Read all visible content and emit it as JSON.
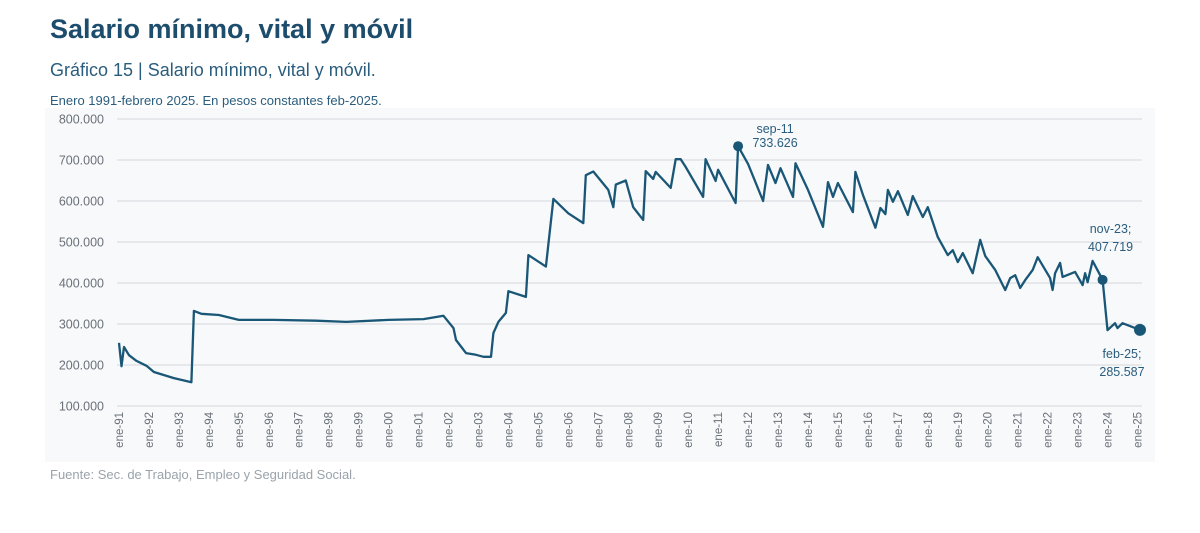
{
  "header": {
    "title": "Salario mínimo, vital y móvil",
    "subtitle": "Gráfico 15 | Salario mínimo, vital y móvil.",
    "note": "Enero 1991-febrero 2025. En pesos constantes feb-2025."
  },
  "footer": {
    "source": "Fuente: Sec. de Trabajo, Empleo y Seguridad Social."
  },
  "chart_data": {
    "type": "line",
    "title": "Salario mínimo, vital y móvil",
    "ylim": [
      100000,
      800000
    ],
    "xlim": [
      "1991-01",
      "2025-02"
    ],
    "grid": true,
    "line_color": "#1a5777",
    "background_color": "#f7f9fb",
    "y_ticks": [
      {
        "value": 100000,
        "label": "100.000"
      },
      {
        "value": 200000,
        "label": "200.000"
      },
      {
        "value": 300000,
        "label": "300.000"
      },
      {
        "value": 400000,
        "label": "400.000"
      },
      {
        "value": 500000,
        "label": "500.000"
      },
      {
        "value": 600000,
        "label": "600.000"
      },
      {
        "value": 700000,
        "label": "700.000"
      },
      {
        "value": 800000,
        "label": "800.000"
      }
    ],
    "x_ticks": [
      "ene-91",
      "ene-92",
      "ene-93",
      "ene-94",
      "ene-95",
      "ene-96",
      "ene-97",
      "ene-98",
      "ene-99",
      "ene-00",
      "ene-01",
      "ene-02",
      "ene-03",
      "ene-04",
      "ene-05",
      "ene-06",
      "ene-07",
      "ene-08",
      "ene-09",
      "ene-10",
      "ene-11",
      "ene-12",
      "ene-13",
      "ene-14",
      "ene-15",
      "ene-16",
      "ene-17",
      "ene-18",
      "ene-19",
      "ene-20",
      "ene-21",
      "ene-22",
      "ene-23",
      "ene-24",
      "ene-25"
    ],
    "x": [
      "1991-01",
      "1991-02",
      "1991-03",
      "1991-05",
      "1991-08",
      "1991-12",
      "1992-03",
      "1992-11",
      "1993-06",
      "1993-07",
      "1993-10",
      "1994-05",
      "1995-01",
      "1996-03",
      "1997-08",
      "1998-08",
      "2000-01",
      "2001-03",
      "2001-11",
      "2002-03",
      "2002-04",
      "2002-08",
      "2002-12",
      "2003-03",
      "2003-06",
      "2003-07",
      "2003-09",
      "2003-12",
      "2004-01",
      "2004-08",
      "2004-09",
      "2005-04",
      "2005-07",
      "2006-01",
      "2006-07",
      "2006-08",
      "2006-11",
      "2007-05",
      "2007-07",
      "2007-08",
      "2007-12",
      "2008-03",
      "2008-07",
      "2008-08",
      "2008-11",
      "2008-12",
      "2009-06",
      "2009-08",
      "2009-10",
      "2009-12",
      "2010-07",
      "2010-08",
      "2010-12",
      "2011-01",
      "2011-08",
      "2011-09",
      "2012-01",
      "2012-07",
      "2012-09",
      "2012-12",
      "2013-02",
      "2013-07",
      "2013-08",
      "2014-01",
      "2014-07",
      "2014-09",
      "2014-11",
      "2015-01",
      "2015-07",
      "2015-08",
      "2015-11",
      "2016-04",
      "2016-06",
      "2016-08",
      "2016-09",
      "2016-11",
      "2017-01",
      "2017-05",
      "2017-07",
      "2017-11",
      "2018-01",
      "2018-05",
      "2018-09",
      "2018-11",
      "2019-01",
      "2019-03",
      "2019-07",
      "2019-10",
      "2019-12",
      "2020-04",
      "2020-08",
      "2020-10",
      "2020-12",
      "2021-02",
      "2021-04",
      "2021-07",
      "2021-09",
      "2022-02",
      "2022-03",
      "2022-04",
      "2022-06",
      "2022-07",
      "2022-12",
      "2023-03",
      "2023-04",
      "2023-05",
      "2023-07",
      "2023-11",
      "2024-01",
      "2024-04",
      "2024-05",
      "2024-07",
      "2025-02"
    ],
    "y": [
      254000,
      197000,
      244000,
      224000,
      210000,
      198000,
      183000,
      168000,
      158000,
      332000,
      325000,
      322000,
      310000,
      310000,
      308000,
      305000,
      310000,
      312000,
      320000,
      290000,
      261000,
      229000,
      225000,
      220000,
      220000,
      278000,
      305000,
      327000,
      380000,
      366000,
      468000,
      440000,
      605000,
      570000,
      546000,
      663000,
      672000,
      627000,
      585000,
      640000,
      650000,
      585000,
      554000,
      673000,
      654000,
      671000,
      632000,
      702000,
      702000,
      683000,
      610000,
      702000,
      649000,
      676000,
      595000,
      733626,
      690000,
      600000,
      688000,
      644000,
      680000,
      610000,
      692000,
      627000,
      537000,
      646000,
      610000,
      644000,
      573000,
      671000,
      615000,
      535000,
      583000,
      568000,
      627000,
      598000,
      624000,
      566000,
      612000,
      561000,
      585000,
      512000,
      468000,
      480000,
      451000,
      473000,
      424000,
      505000,
      466000,
      432000,
      383000,
      412000,
      419000,
      388000,
      407000,
      432000,
      463000,
      412000,
      383000,
      424000,
      449000,
      415000,
      427000,
      395000,
      424000,
      402000,
      454000,
      407719,
      285000,
      302000,
      290000,
      302000,
      285587
    ],
    "annotations": [
      {
        "x": "2011-09",
        "y": 733626,
        "line1": "sep-11",
        "line2": "733.626"
      },
      {
        "x": "2023-11",
        "y": 407719,
        "line1": "nov-23;",
        "line2": "407.719"
      },
      {
        "x": "2025-02",
        "y": 285587,
        "line1": "feb-25;",
        "line2": "285.587"
      }
    ]
  }
}
